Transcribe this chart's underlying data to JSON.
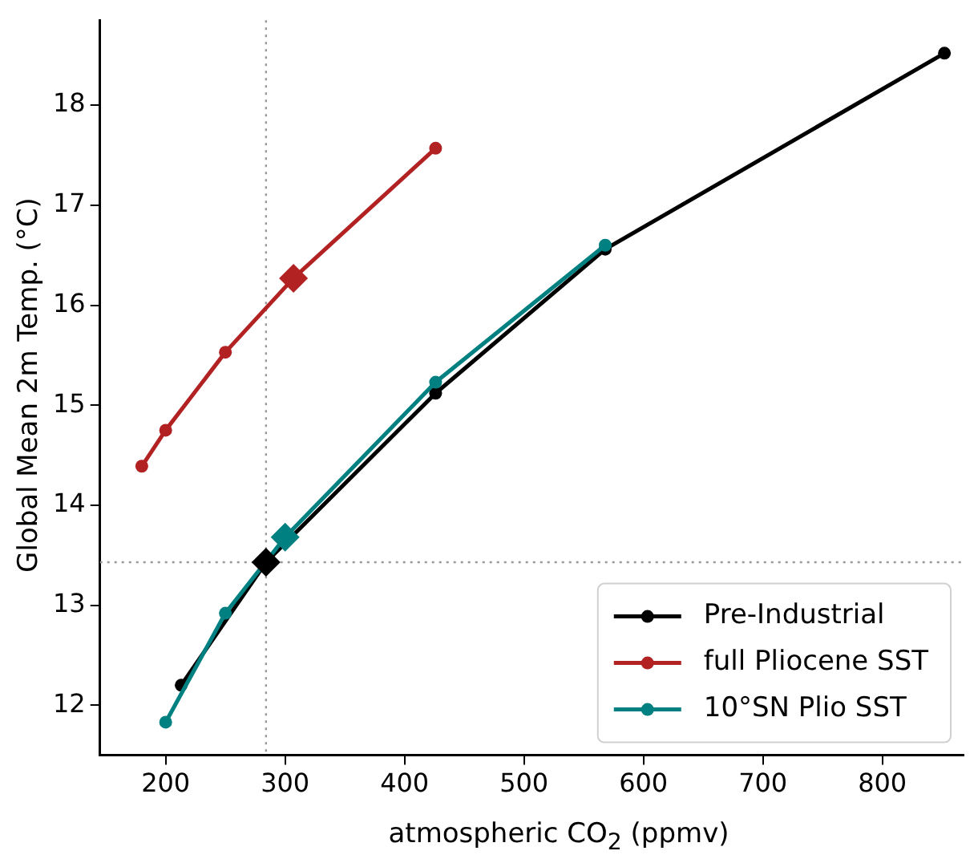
{
  "chart_data": {
    "type": "line",
    "xlabel": "atmospheric CO$_{2}$ (ppmv)",
    "ylabel": "Global Mean 2m Temp. (°C)",
    "xlim": [
      145,
      868
    ],
    "xticks": [
      200,
      300,
      400,
      500,
      600,
      700,
      800
    ],
    "ylim": [
      11.5,
      18.85
    ],
    "yticks": [
      12,
      13,
      14,
      15,
      16,
      17,
      18
    ],
    "grid": false,
    "legend": "bottom right",
    "marker": "circle",
    "line_style": "solid",
    "ref_lines": [
      {
        "axis": "x",
        "value": 284,
        "color": "#999999",
        "line_style": "dotted"
      },
      {
        "axis": "y",
        "value": 13.43,
        "color": "#999999",
        "line_style": "dotted"
      }
    ],
    "series": [
      {
        "name": "Pre-Industrial",
        "color": "#000000",
        "x": [
          213,
          284,
          426,
          568,
          852
        ],
        "values": [
          12.2,
          13.43,
          15.12,
          16.56,
          18.52
        ]
      },
      {
        "name": "full Pliocene SST",
        "color": "#b22222",
        "x": [
          180,
          200,
          250,
          307,
          426
        ],
        "values": [
          14.39,
          14.75,
          15.53,
          16.27,
          17.57
        ]
      },
      {
        "name": "10°SN Plio SST",
        "color": "#008080",
        "x": [
          200,
          250,
          300,
          426,
          568
        ],
        "values": [
          11.83,
          12.92,
          13.68,
          15.23,
          16.6
        ]
      },
      {
        "type": "scatter",
        "marker": "diamond",
        "color": "#000000",
        "x": [
          284
        ],
        "values": [
          13.43
        ]
      },
      {
        "type": "scatter",
        "marker": "diamond",
        "color": "#b22222",
        "x": [
          307
        ],
        "values": [
          16.27
        ]
      },
      {
        "type": "scatter",
        "marker": "diamond",
        "color": "#008080",
        "x": [
          300
        ],
        "values": [
          13.68
        ]
      }
    ]
  }
}
